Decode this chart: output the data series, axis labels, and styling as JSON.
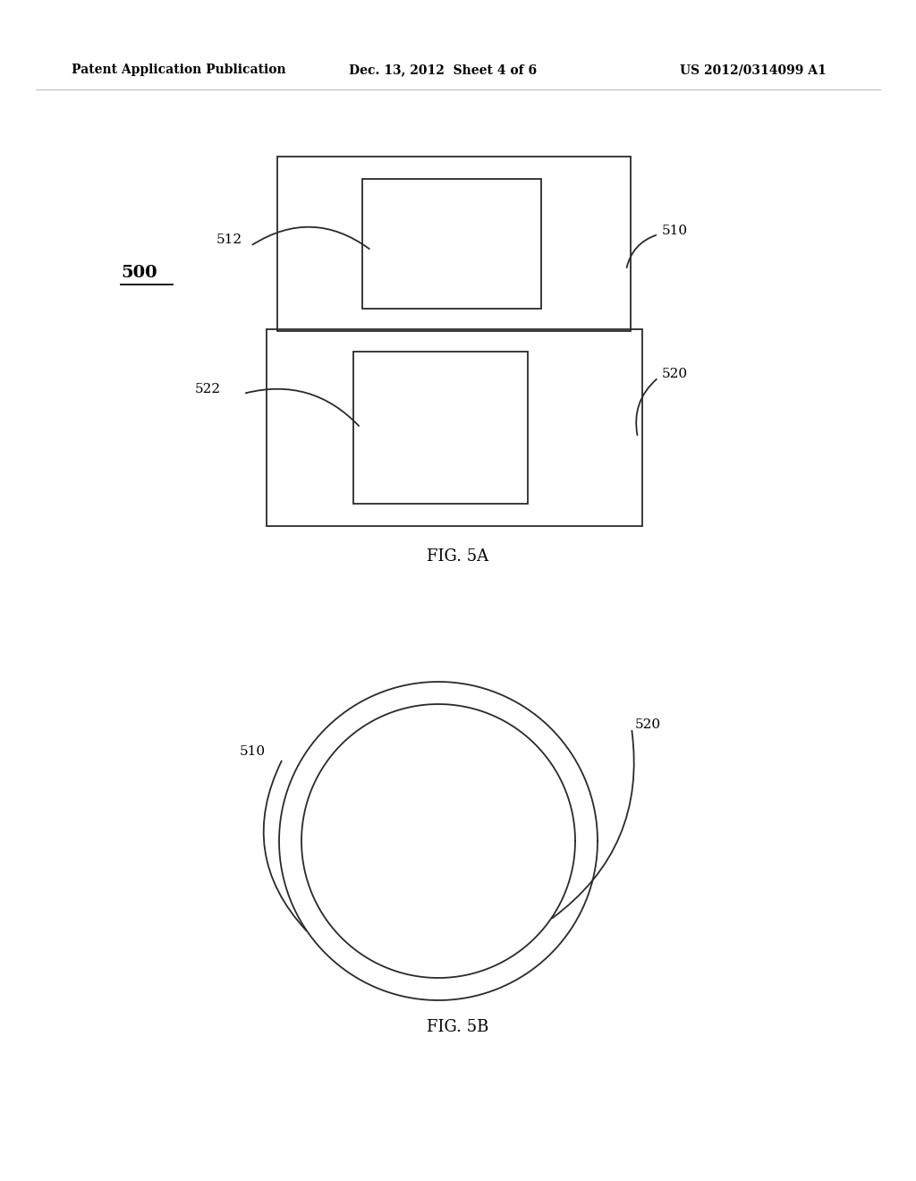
{
  "header_left": "Patent Application Publication",
  "header_mid": "Dec. 13, 2012  Sheet 4 of 6",
  "header_right": "US 2012/0314099 A1",
  "background_color": "#ffffff",
  "line_color": "#2a2a2a",
  "fig5a_label": "FIG. 5A",
  "fig5b_label": "FIG. 5B",
  "label_500": "500",
  "label_510": "510",
  "label_512": "512",
  "label_520": "520",
  "label_522": "522"
}
